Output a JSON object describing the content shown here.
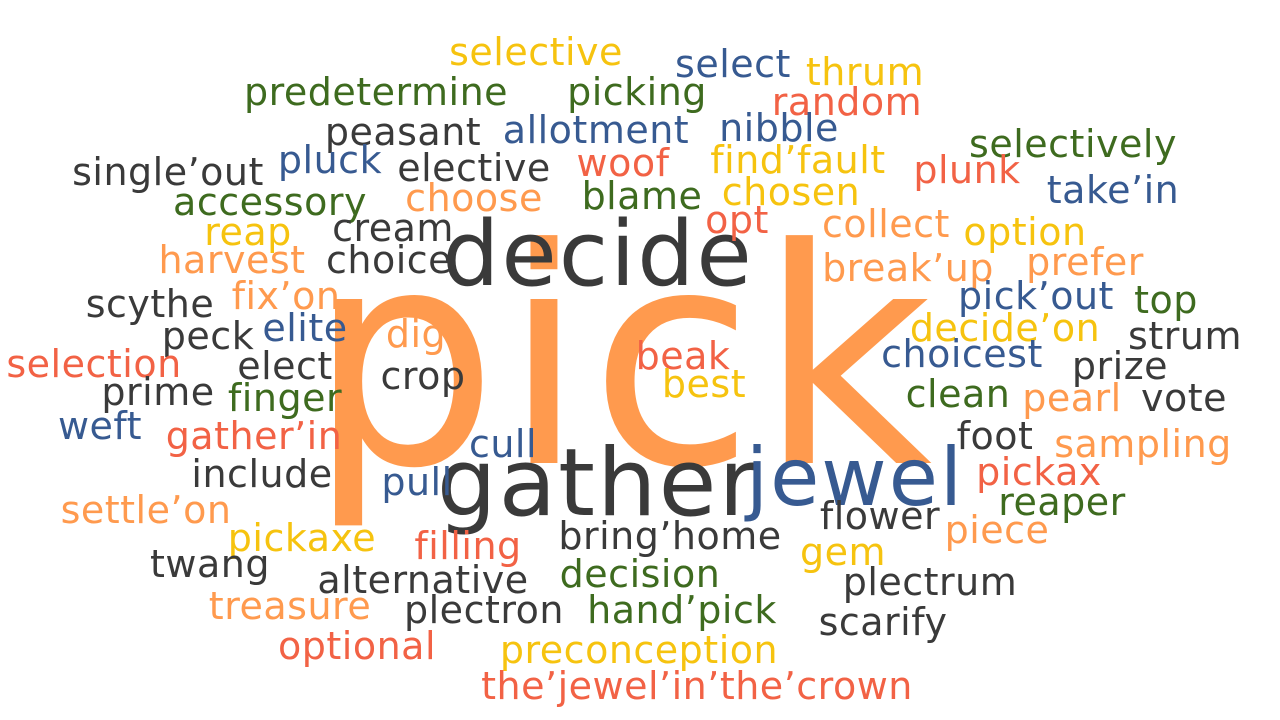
{
  "palette": {
    "dark": "#3a3a3a",
    "orange": "#ff9a4e",
    "red": "#f26245",
    "yellow": "#f6c30f",
    "blue": "#375a91",
    "green": "#3e6b1f"
  },
  "words": [
    {
      "text": "pick",
      "color": "orange"
    },
    {
      "text": "decide",
      "color": "dark"
    },
    {
      "text": "gather",
      "color": "dark"
    },
    {
      "text": "jewel",
      "color": "blue"
    },
    {
      "text": "selective",
      "color": "yellow"
    },
    {
      "text": "select",
      "color": "blue"
    },
    {
      "text": "thrum",
      "color": "yellow"
    },
    {
      "text": "predetermine",
      "color": "green"
    },
    {
      "text": "picking",
      "color": "green"
    },
    {
      "text": "random",
      "color": "red"
    },
    {
      "text": "peasant",
      "color": "dark"
    },
    {
      "text": "allotment",
      "color": "blue"
    },
    {
      "text": "nibble",
      "color": "blue"
    },
    {
      "text": "selectively",
      "color": "green"
    },
    {
      "text": "single’out",
      "color": "dark"
    },
    {
      "text": "pluck",
      "color": "blue"
    },
    {
      "text": "elective",
      "color": "dark"
    },
    {
      "text": "woof",
      "color": "red"
    },
    {
      "text": "find’fault",
      "color": "yellow"
    },
    {
      "text": "plunk",
      "color": "red"
    },
    {
      "text": "accessory",
      "color": "green"
    },
    {
      "text": "choose",
      "color": "orange"
    },
    {
      "text": "blame",
      "color": "green"
    },
    {
      "text": "chosen",
      "color": "yellow"
    },
    {
      "text": "take’in",
      "color": "blue"
    },
    {
      "text": "cream",
      "color": "dark"
    },
    {
      "text": "opt",
      "color": "red"
    },
    {
      "text": "collect",
      "color": "orange"
    },
    {
      "text": "reap",
      "color": "yellow"
    },
    {
      "text": "option",
      "color": "yellow"
    },
    {
      "text": "harvest",
      "color": "orange"
    },
    {
      "text": "choice",
      "color": "dark"
    },
    {
      "text": "break’up",
      "color": "orange"
    },
    {
      "text": "prefer",
      "color": "orange"
    },
    {
      "text": "fix’on",
      "color": "orange"
    },
    {
      "text": "pick’out",
      "color": "blue"
    },
    {
      "text": "top",
      "color": "green"
    },
    {
      "text": "scythe",
      "color": "dark"
    },
    {
      "text": "peck",
      "color": "dark"
    },
    {
      "text": "elite",
      "color": "blue"
    },
    {
      "text": "dig",
      "color": "orange"
    },
    {
      "text": "decide’on",
      "color": "yellow"
    },
    {
      "text": "strum",
      "color": "dark"
    },
    {
      "text": "selection",
      "color": "red"
    },
    {
      "text": "elect",
      "color": "dark"
    },
    {
      "text": "crop",
      "color": "dark"
    },
    {
      "text": "beak",
      "color": "red"
    },
    {
      "text": "choicest",
      "color": "blue"
    },
    {
      "text": "prize",
      "color": "dark"
    },
    {
      "text": "prime",
      "color": "dark"
    },
    {
      "text": "finger",
      "color": "green"
    },
    {
      "text": "best",
      "color": "yellow"
    },
    {
      "text": "clean",
      "color": "green"
    },
    {
      "text": "pearl",
      "color": "orange"
    },
    {
      "text": "vote",
      "color": "dark"
    },
    {
      "text": "weft",
      "color": "blue"
    },
    {
      "text": "gather’in",
      "color": "red"
    },
    {
      "text": "cull",
      "color": "blue"
    },
    {
      "text": "foot",
      "color": "dark"
    },
    {
      "text": "sampling",
      "color": "orange"
    },
    {
      "text": "include",
      "color": "dark"
    },
    {
      "text": "pull",
      "color": "blue"
    },
    {
      "text": "pickax",
      "color": "red"
    },
    {
      "text": "reaper",
      "color": "green"
    },
    {
      "text": "settle’on",
      "color": "orange"
    },
    {
      "text": "flower",
      "color": "dark"
    },
    {
      "text": "piece",
      "color": "orange"
    },
    {
      "text": "pickaxe",
      "color": "yellow"
    },
    {
      "text": "filling",
      "color": "red"
    },
    {
      "text": "bring’home",
      "color": "dark"
    },
    {
      "text": "twang",
      "color": "dark"
    },
    {
      "text": "gem",
      "color": "yellow"
    },
    {
      "text": "alternative",
      "color": "dark"
    },
    {
      "text": "decision",
      "color": "green"
    },
    {
      "text": "plectrum",
      "color": "dark"
    },
    {
      "text": "treasure",
      "color": "orange"
    },
    {
      "text": "plectron",
      "color": "dark"
    },
    {
      "text": "hand’pick",
      "color": "green"
    },
    {
      "text": "scarify",
      "color": "dark"
    },
    {
      "text": "optional",
      "color": "red"
    },
    {
      "text": "preconception",
      "color": "yellow"
    },
    {
      "text": "the’jewel’in’the’crown",
      "color": "red"
    }
  ]
}
